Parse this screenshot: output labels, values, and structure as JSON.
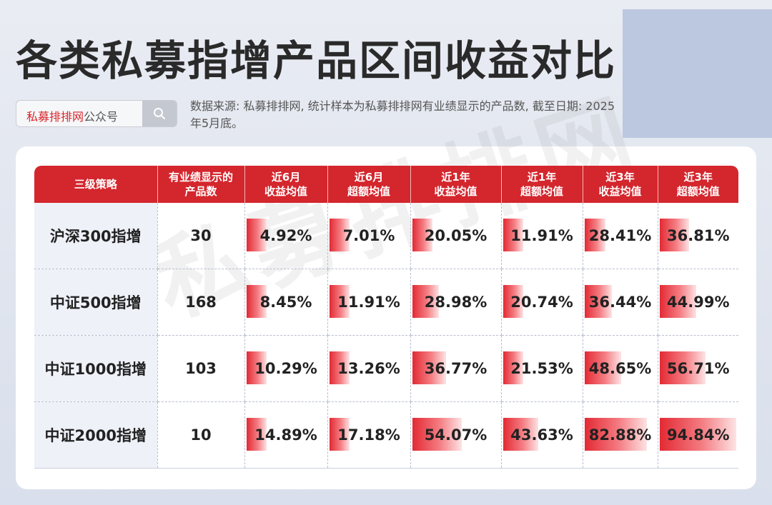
{
  "title": "各类私募指增产品区间收益对比",
  "search": {
    "brand": "私募排排网",
    "suffix": "公众号",
    "icon": "search-icon"
  },
  "source_note": "数据来源: 私募排排网, 统计样本为私募排排网有业绩显示的产品数, 截至日期: 2025年5月底。",
  "watermark": "私募排排网",
  "chart_data": {
    "type": "table",
    "columns": [
      "三级策略",
      "有业绩显示的产品数",
      "近6月收益均值",
      "近6月超额均值",
      "近1年收益均值",
      "近1年超额均值",
      "近3年收益均值",
      "近3年超额均值"
    ],
    "rows": [
      {
        "strategy": "沪深300指增",
        "count": 30,
        "values": [
          4.92,
          7.01,
          20.05,
          11.91,
          28.41,
          36.81
        ],
        "labels": [
          "4.92%",
          "7.01%",
          "20.05%",
          "11.91%",
          "28.41%",
          "36.81%"
        ]
      },
      {
        "strategy": "中证500指增",
        "count": 168,
        "values": [
          8.45,
          11.91,
          28.98,
          20.74,
          36.44,
          44.99
        ],
        "labels": [
          "8.45%",
          "11.91%",
          "28.98%",
          "20.74%",
          "36.44%",
          "44.99%"
        ]
      },
      {
        "strategy": "中证1000指增",
        "count": 103,
        "values": [
          10.29,
          13.26,
          36.77,
          21.53,
          48.65,
          56.71
        ],
        "labels": [
          "10.29%",
          "13.26%",
          "36.77%",
          "21.53%",
          "48.65%",
          "56.71%"
        ]
      },
      {
        "strategy": "中证2000指增",
        "count": 10,
        "values": [
          14.89,
          17.18,
          54.07,
          43.63,
          82.88,
          94.84
        ],
        "labels": [
          "14.89%",
          "17.18%",
          "54.07%",
          "43.63%",
          "82.88%",
          "94.84%"
        ]
      }
    ],
    "bar_color": "#e32a34",
    "header_color": "#d4262d"
  }
}
